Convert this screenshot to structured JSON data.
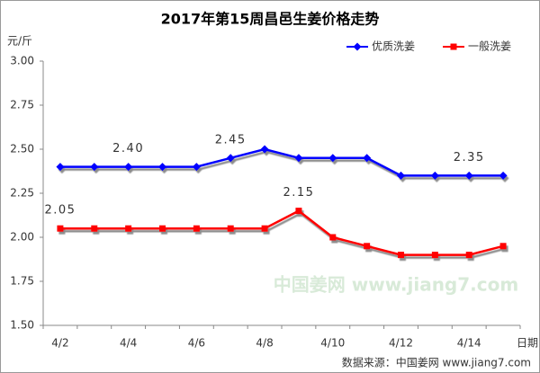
{
  "chart_data": {
    "type": "line",
    "title": "2017年第15周昌邑生姜价格走势",
    "y_label": "元/斤",
    "x_label": "日期",
    "source": "数据来源：中国姜网 www.jiang7.com",
    "watermark": "中国姜网 www.jiang7.com",
    "categories": [
      "4/2",
      null,
      "4/4",
      null,
      "4/6",
      null,
      "4/8",
      null,
      "4/10",
      null,
      "4/12",
      null,
      "4/14",
      null
    ],
    "series": [
      {
        "name": "优质洗姜",
        "color": "#0000ff",
        "marker": "diamond",
        "values": [
          2.4,
          2.4,
          2.4,
          2.4,
          2.4,
          2.45,
          2.5,
          2.45,
          2.45,
          2.45,
          2.35,
          2.35,
          2.35,
          2.35
        ],
        "value_labels": [
          null,
          null,
          "2.40",
          null,
          null,
          "2.45",
          null,
          null,
          null,
          null,
          null,
          null,
          "2.35",
          null
        ]
      },
      {
        "name": "一般洗姜",
        "color": "#ff0000",
        "marker": "square",
        "values": [
          2.05,
          2.05,
          2.05,
          2.05,
          2.05,
          2.05,
          2.05,
          2.15,
          2.0,
          1.95,
          1.9,
          1.9,
          1.9,
          1.95
        ],
        "value_labels": [
          "2.05",
          null,
          null,
          null,
          null,
          null,
          null,
          "2.15",
          null,
          null,
          null,
          null,
          null,
          null
        ]
      }
    ],
    "ylim": [
      1.5,
      3.0
    ],
    "yticks": [
      {
        "value": 1.5,
        "label": "1.50"
      },
      {
        "value": 1.75,
        "label": "1.75"
      },
      {
        "value": 2.0,
        "label": "2.00"
      },
      {
        "value": 2.25,
        "label": "2.25"
      },
      {
        "value": 2.5,
        "label": "2.50"
      },
      {
        "value": 2.75,
        "label": "2.75"
      },
      {
        "value": 3.0,
        "label": "3.00"
      }
    ],
    "grid": false,
    "legend": "top-right"
  }
}
